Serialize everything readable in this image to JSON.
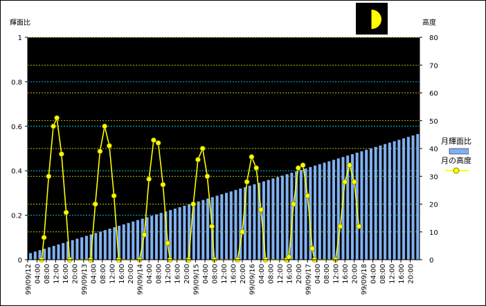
{
  "chart_data": {
    "type": "bar+line",
    "left_axis_label": "輝面比",
    "right_axis_label": "高度",
    "left_ylim": [
      0,
      1
    ],
    "right_ylim": [
      0,
      80
    ],
    "left_ticks": [
      "0",
      "0.2",
      "0.4",
      "0.6",
      "0.8",
      "1"
    ],
    "right_ticks": [
      "0",
      "10",
      "20",
      "30",
      "40",
      "50",
      "60",
      "70",
      "80"
    ],
    "x_tick_labels": [
      "99/09/12",
      "04:00",
      "08:00",
      "12:00",
      "16:00",
      "20:00",
      "99/09/13",
      "04:00",
      "08:00",
      "12:00",
      "16:00",
      "20:00",
      "99/09/14",
      "04:00",
      "08:00",
      "12:00",
      "16:00",
      "20:00",
      "99/09/15",
      "04:00",
      "08:00",
      "12:00",
      "16:00",
      "20:00",
      "99/09/16",
      "04:00",
      "08:00",
      "12:00",
      "16:00",
      "20:00",
      "99/09/17",
      "04:00",
      "08:00",
      "12:00",
      "16:00",
      "20:00",
      "99/09/18",
      "04:00",
      "08:00",
      "12:00",
      "16:00",
      "20:00"
    ],
    "x_hours_total": 168,
    "series": [
      {
        "name": "月輝面比",
        "kind": "bar",
        "color": "#80b0f0",
        "interval_hours": 2,
        "start": 0.03,
        "end": 0.565
      },
      {
        "name": "月の高度",
        "kind": "line",
        "color": "#ffff00",
        "points": [
          [
            6,
            0
          ],
          [
            7,
            8
          ],
          [
            9,
            30
          ],
          [
            11,
            48
          ],
          [
            12.5,
            51
          ],
          [
            14.5,
            38
          ],
          [
            16.5,
            17
          ],
          [
            18,
            0
          ],
          [
            27,
            0
          ],
          [
            29,
            20
          ],
          [
            31,
            39
          ],
          [
            33,
            48
          ],
          [
            35,
            41
          ],
          [
            37,
            23
          ],
          [
            39,
            0
          ],
          [
            48,
            0
          ],
          [
            50,
            9
          ],
          [
            52,
            29
          ],
          [
            54,
            43
          ],
          [
            56,
            42
          ],
          [
            58,
            27
          ],
          [
            60,
            6
          ],
          [
            61,
            0
          ],
          [
            69,
            0
          ],
          [
            71,
            20
          ],
          [
            73,
            36
          ],
          [
            75,
            40
          ],
          [
            77,
            30
          ],
          [
            79,
            12
          ],
          [
            80,
            0
          ],
          [
            90,
            0
          ],
          [
            92,
            10
          ],
          [
            94,
            28
          ],
          [
            96,
            37
          ],
          [
            98,
            33
          ],
          [
            100,
            18
          ],
          [
            102,
            0
          ],
          [
            111,
            0
          ],
          [
            112,
            1
          ],
          [
            114,
            20
          ],
          [
            116,
            33
          ],
          [
            118,
            34
          ],
          [
            120,
            23
          ],
          [
            122,
            4
          ],
          [
            123,
            0
          ],
          [
            132,
            0
          ],
          [
            134,
            12
          ],
          [
            136,
            28
          ],
          [
            138,
            34
          ],
          [
            140,
            28
          ],
          [
            142,
            12
          ]
        ]
      }
    ],
    "legend_placement": "right",
    "background": "#000000",
    "grid_colors": [
      "#00ffff",
      "#ffff00"
    ]
  },
  "legend": {
    "items": [
      {
        "label": "月輝面比"
      },
      {
        "label": "月の高度"
      }
    ]
  }
}
